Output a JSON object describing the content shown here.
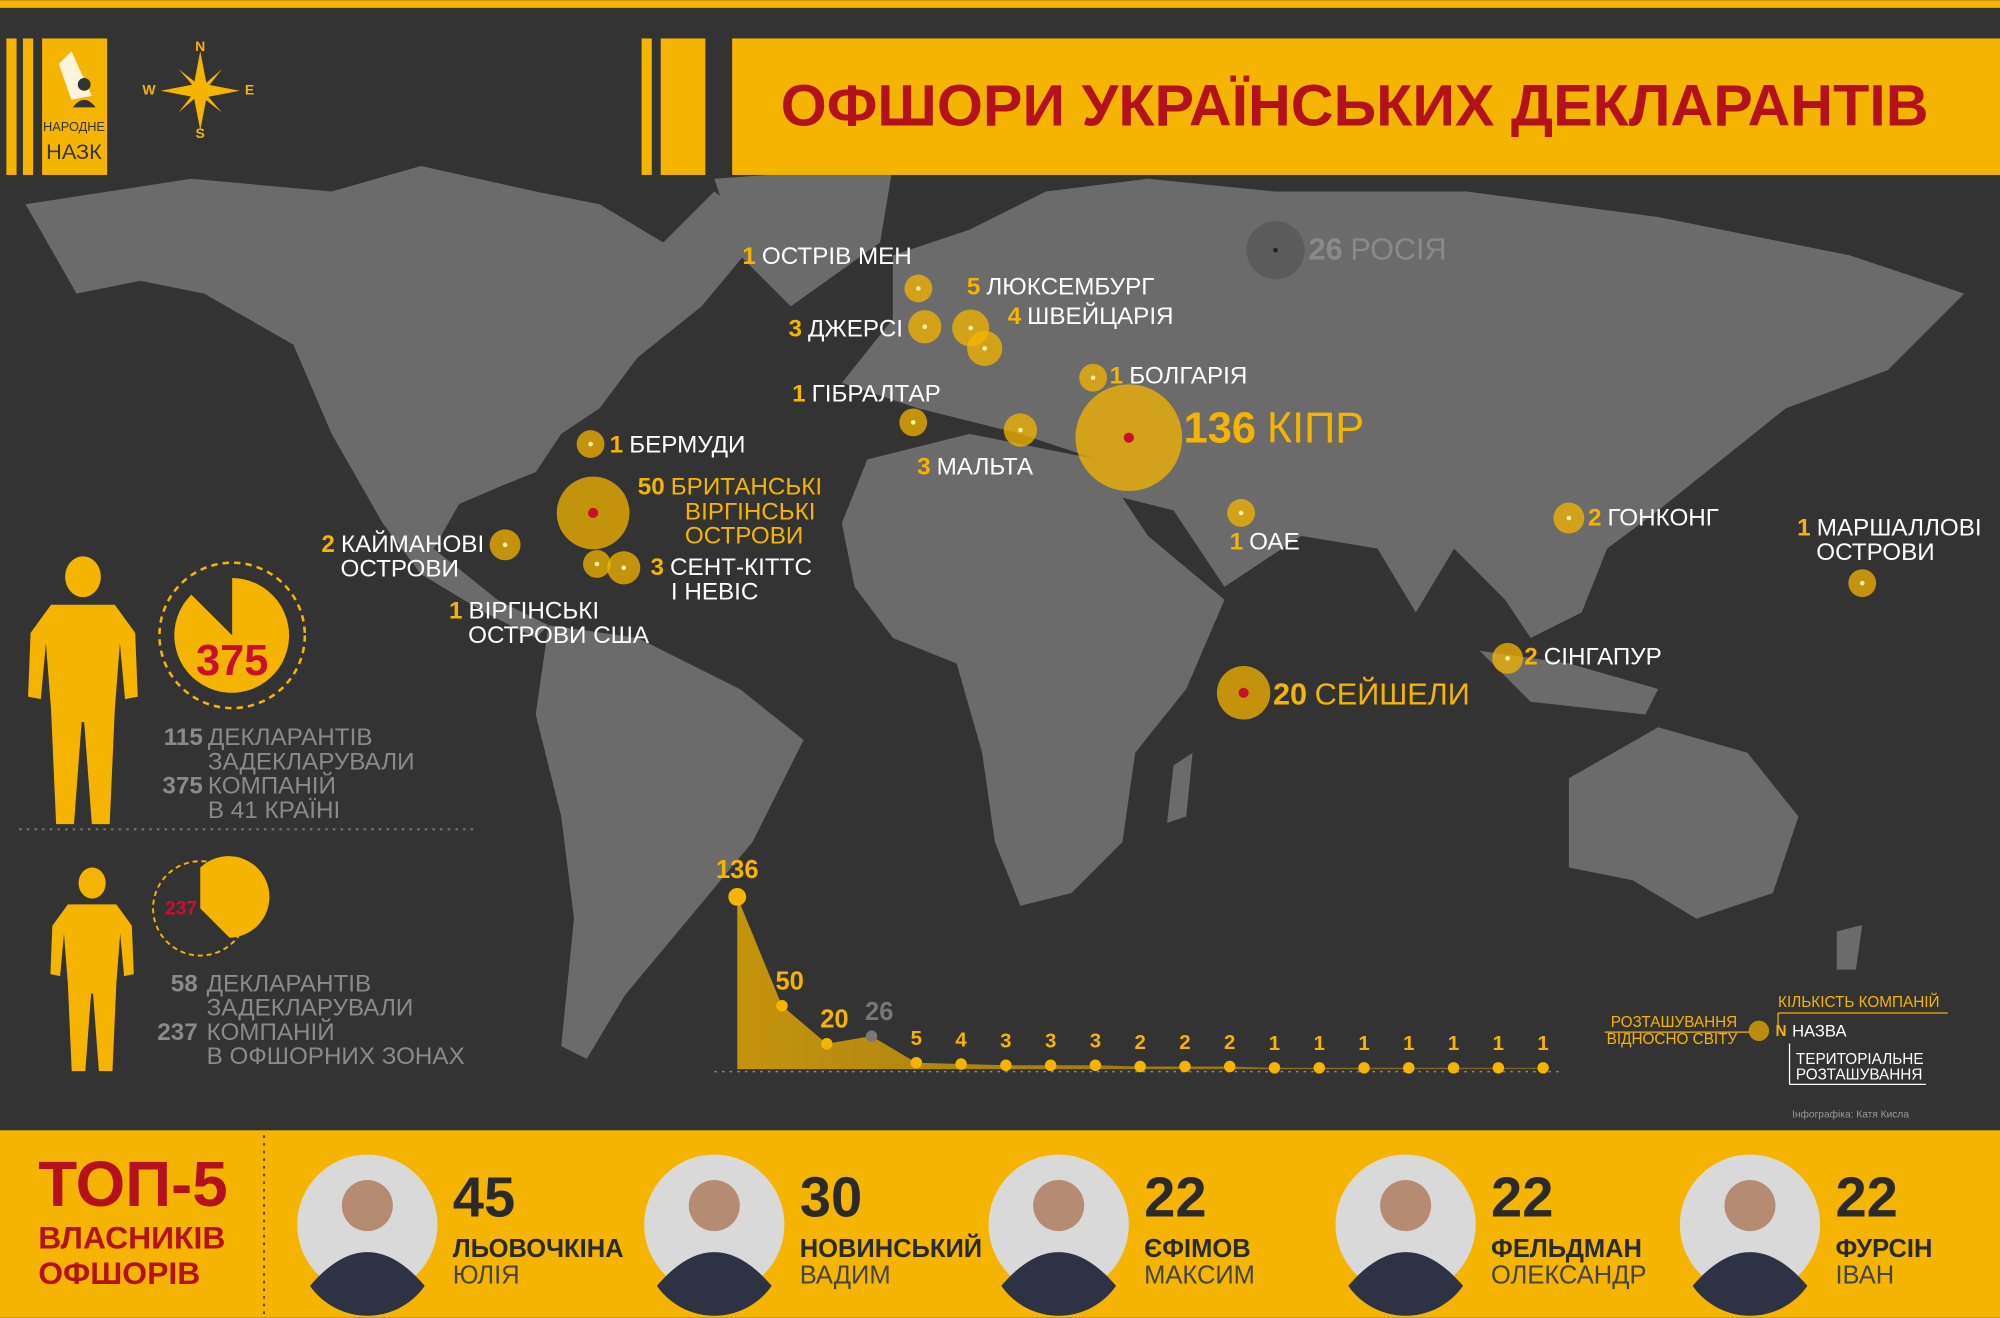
{
  "header": {
    "title": "ОФШОРИ УКРАЇНСЬКИХ ДЕКЛАРАНТІВ",
    "logo": [
      "НАРОДНЕ",
      "НАЗК"
    ],
    "compass": [
      "N",
      "E",
      "S",
      "W"
    ]
  },
  "locations": [
    {
      "count": 1,
      "name": [
        "ОСТРІВ МЕН"
      ],
      "bubble_color": "#f5b400",
      "label_color": "#ffffff"
    },
    {
      "count": 5,
      "name": [
        "ЛЮКСЕМБУРГ"
      ],
      "bubble_color": "#f5b400",
      "label_color": "#ffffff"
    },
    {
      "count": 3,
      "name": [
        "ДЖЕРСІ"
      ],
      "bubble_color": "#f5b400",
      "label_color": "#ffffff"
    },
    {
      "count": 4,
      "name": [
        "ШВЕЙЦАРІЯ"
      ],
      "bubble_color": "#f5b400",
      "label_color": "#ffffff"
    },
    {
      "count": 1,
      "name": [
        "ГІБРАЛТАР"
      ],
      "bubble_color": "#f5b400",
      "label_color": "#ffffff"
    },
    {
      "count": 3,
      "name": [
        "МАЛЬТА"
      ],
      "bubble_color": "#f5b400",
      "label_color": "#ffffff"
    },
    {
      "count": 1,
      "name": [
        "БОЛГАРІЯ"
      ],
      "bubble_color": "#f5b400",
      "label_color": "#ffffff"
    },
    {
      "count": 136,
      "name": [
        "КІПР"
      ],
      "bubble_color": "#f5b400",
      "label_color": "#f5b400"
    },
    {
      "count": 26,
      "name": [
        "РОСІЯ"
      ],
      "bubble_color": "#555555",
      "label_color": "#8a8a8a"
    },
    {
      "count": 1,
      "name": [
        "БЕРМУДИ"
      ],
      "bubble_color": "#f5b400",
      "label_color": "#ffffff"
    },
    {
      "count": 50,
      "name": [
        "БРИТАНСЬКІ",
        "ВІРГІНСЬКІ",
        "ОСТРОВИ"
      ],
      "bubble_color": "#f5b400",
      "label_color": "#f5b400"
    },
    {
      "count": 2,
      "name": [
        "КАЙМАНОВІ",
        "ОСТРОВИ"
      ],
      "bubble_color": "#f5b400",
      "label_color": "#ffffff"
    },
    {
      "count": 3,
      "name": [
        "СЕНТ-КІТТС",
        "І НЕВІС"
      ],
      "bubble_color": "#f5b400",
      "label_color": "#ffffff"
    },
    {
      "count": 1,
      "name": [
        "ВІРГІНСЬКІ",
        "ОСТРОВИ США"
      ],
      "bubble_color": "#f5b400",
      "label_color": "#ffffff"
    },
    {
      "count": 1,
      "name": [
        "ОАЕ"
      ],
      "bubble_color": "#f5b400",
      "label_color": "#ffffff"
    },
    {
      "count": 2,
      "name": [
        "ГОНКОНГ"
      ],
      "bubble_color": "#f5b400",
      "label_color": "#ffffff"
    },
    {
      "count": 1,
      "name": [
        "МАРШАЛЛОВІ",
        "ОСТРОВИ"
      ],
      "bubble_color": "#f5b400",
      "label_color": "#ffffff"
    },
    {
      "count": 2,
      "name": [
        "СІНГАПУР"
      ],
      "bubble_color": "#f5b400",
      "label_color": "#ffffff"
    },
    {
      "count": 20,
      "name": [
        "СЕЙШЕЛИ"
      ],
      "bubble_color": "#f5b400",
      "label_color": "#f5b400"
    }
  ],
  "summary": [
    {
      "circle": 375,
      "rows": [
        {
          "number": 115,
          "text": [
            "ДЕКЛАРАНТІВ",
            "ЗАДЕКЛАРУВАЛИ"
          ]
        },
        {
          "number": 375,
          "text": [
            "КОМПАНІЙ",
            "В 41 КРАЇНІ"
          ]
        }
      ]
    },
    {
      "circle": 237,
      "rows": [
        {
          "number": 58,
          "text": [
            "ДЕКЛАРАНТІВ",
            "ЗАДЕКЛАРУВАЛИ"
          ]
        },
        {
          "number": 237,
          "text": [
            "КОМПАНІЙ",
            "В ОФШОРНИХ ЗОНАХ"
          ]
        }
      ]
    }
  ],
  "chart_data": {
    "type": "area",
    "values": [
      136,
      50,
      20,
      26,
      5,
      4,
      3,
      3,
      3,
      2,
      2,
      2,
      1,
      1,
      1,
      1,
      1,
      1,
      1
    ],
    "colors": [
      "#f5b400",
      "#f5b400",
      "#f5b400",
      "#777777",
      "#f5b400",
      "#f5b400",
      "#f5b400",
      "#f5b400",
      "#f5b400",
      "#f5b400",
      "#f5b400",
      "#f5b400",
      "#f5b400",
      "#f5b400",
      "#f5b400",
      "#f5b400",
      "#f5b400",
      "#f5b400",
      "#f5b400"
    ],
    "color": "#f5b400",
    "ylim": [
      0,
      136
    ]
  },
  "legend": {
    "count": "КІЛЬКІСТЬ КОМПАНІЙ",
    "symbol": "N",
    "name": "НАЗВА",
    "territory": [
      "ТЕРИТОРІАЛЬНЕ",
      "РОЗТАШУВАННЯ"
    ],
    "position": [
      "РОЗТАШУВАННЯ",
      "ВІДНОСНО СВІТУ"
    ]
  },
  "credit": "Інфографіка: Катя Кисла",
  "top5": {
    "title": [
      "ТОП-5",
      "ВЛАСНИКІВ",
      "ОФШОРІВ"
    ],
    "people": [
      {
        "count": 45,
        "surname": "ЛЬОВОЧКІНА",
        "name": "ЮЛІЯ"
      },
      {
        "count": 30,
        "surname": "НОВИНСЬКИЙ",
        "name": "ВАДИМ"
      },
      {
        "count": 22,
        "surname": "ЄФІМОВ",
        "name": "МАКСИМ"
      },
      {
        "count": 22,
        "surname": "ФЕЛЬДМАН",
        "name": "ОЛЕКСАНДР"
      },
      {
        "count": 22,
        "surname": "ФУРСІН",
        "name": "ІВАН"
      }
    ]
  }
}
